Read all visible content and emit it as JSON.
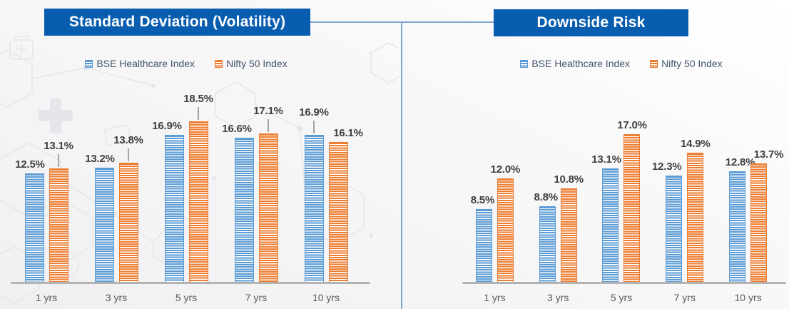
{
  "colors": {
    "bse_blue": "#5B9BD5",
    "nifty_orange": "#ED7D31",
    "banner_blue": "#085DAE",
    "connector_blue": "#7FA6D3",
    "axis_gray": "#B3B3B3",
    "leader_gray": "#A3A3A3",
    "value_label_text": "#3F3F3F",
    "category_label_text": "#595959",
    "legend_text": "#44546A"
  },
  "watermark": {
    "theme": "healthcare-hexagon-molecule-pattern",
    "icons": [
      "first-aid-kit-icon",
      "medical-plus-icon",
      "hexagon-outlines",
      "molecule-dots",
      "tag-icon",
      "download-circle-icon"
    ]
  },
  "chart_data": [
    {
      "type": "bar",
      "title": "Standard Deviation (Volatility)",
      "categories": [
        "1 yrs",
        "3 yrs",
        "5 yrs",
        "7 yrs",
        "10 yrs"
      ],
      "unit": "%",
      "ylim": [
        0,
        20
      ],
      "grid": false,
      "legend_position": "top-center",
      "series": [
        {
          "name": "BSE Healthcare Index",
          "color_key": "bse_blue",
          "values": [
            12.5,
            13.2,
            16.9,
            16.6,
            16.9
          ],
          "labels": [
            "12.5%",
            "13.2%",
            "16.9%",
            "16.6%",
            "16.9%"
          ]
        },
        {
          "name": "Nifty 50 Index",
          "color_key": "nifty_orange",
          "values": [
            13.1,
            13.8,
            18.5,
            17.1,
            16.1
          ],
          "labels": [
            "13.1%",
            "13.8%",
            "18.5%",
            "17.1%",
            "16.1%"
          ]
        }
      ],
      "label_layout": {
        "raised": [
          [
            1,
            0
          ],
          [
            1,
            1
          ],
          [
            1,
            2
          ],
          [
            1,
            3
          ],
          [
            0,
            4
          ]
        ],
        "dx": {
          "0": [
            -6,
            -6,
            -10,
            -10,
            0
          ],
          "1": [
            0,
            0,
            0,
            0,
            14
          ]
        }
      }
    },
    {
      "type": "bar",
      "title": "Downside Risk",
      "categories": [
        "1 yrs",
        "3 yrs",
        "5 yrs",
        "7 yrs",
        "10 yrs"
      ],
      "unit": "%",
      "ylim": [
        0,
        20
      ],
      "grid": false,
      "legend_position": "top-center",
      "series": [
        {
          "name": "BSE Healthcare Index",
          "color_key": "bse_blue",
          "values": [
            8.5,
            8.8,
            13.1,
            12.3,
            12.8
          ],
          "labels": [
            "8.5%",
            "8.8%",
            "13.1%",
            "12.3%",
            "12.8%"
          ]
        },
        {
          "name": "Nifty 50 Index",
          "color_key": "nifty_orange",
          "values": [
            12.0,
            10.8,
            17.0,
            14.9,
            13.7
          ],
          "labels": [
            "12.0%",
            "10.8%",
            "17.0%",
            "14.9%",
            "13.7%"
          ]
        }
      ],
      "label_layout": {
        "raised": [],
        "dx": {
          "0": [
            -2,
            -2,
            -6,
            -10,
            4
          ],
          "1": [
            0,
            0,
            0,
            0,
            14
          ]
        }
      }
    }
  ]
}
